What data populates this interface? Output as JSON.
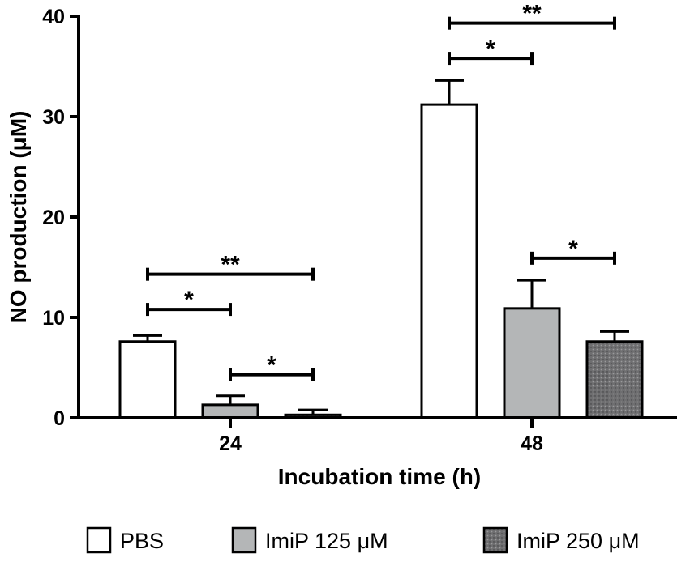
{
  "chart_data": {
    "type": "bar",
    "categories": [
      "24",
      "48"
    ],
    "series": [
      {
        "name": "PBS",
        "values": [
          7.6,
          31.2
        ],
        "errors": [
          0.6,
          2.4
        ],
        "fill": "#ffffff",
        "pattern": "none"
      },
      {
        "name": "ImiP 125 μM",
        "values": [
          1.3,
          10.9
        ],
        "errors": [
          0.9,
          2.8
        ],
        "fill": "#b4b6b7",
        "pattern": "none"
      },
      {
        "name": "ImiP 250 μM",
        "values": [
          0.3,
          7.6
        ],
        "errors": [
          0.5,
          1.0
        ],
        "fill": "#6e6e70",
        "pattern": "dots"
      }
    ],
    "xlabel": "Incubation time (h)",
    "ylabel": "NO production (μM)",
    "ylim": [
      0,
      40
    ],
    "yticks": [
      0,
      10,
      20,
      30,
      40
    ],
    "ytick_labels": [
      "0",
      "10",
      "20",
      "30",
      "40"
    ],
    "significance": [
      {
        "category": 0,
        "from_series": 0,
        "to_series": 1,
        "level": 10.8,
        "label": "*"
      },
      {
        "category": 0,
        "from_series": 0,
        "to_series": 2,
        "level": 14.3,
        "label": "**"
      },
      {
        "category": 0,
        "from_series": 1,
        "to_series": 2,
        "level": 4.3,
        "label": "*"
      },
      {
        "category": 1,
        "from_series": 0,
        "to_series": 1,
        "level": 35.8,
        "label": "*"
      },
      {
        "category": 1,
        "from_series": 0,
        "to_series": 2,
        "level": 39.3,
        "label": "**"
      },
      {
        "category": 1,
        "from_series": 1,
        "to_series": 2,
        "level": 15.9,
        "label": "*"
      }
    ],
    "legend_position": "bottom"
  }
}
